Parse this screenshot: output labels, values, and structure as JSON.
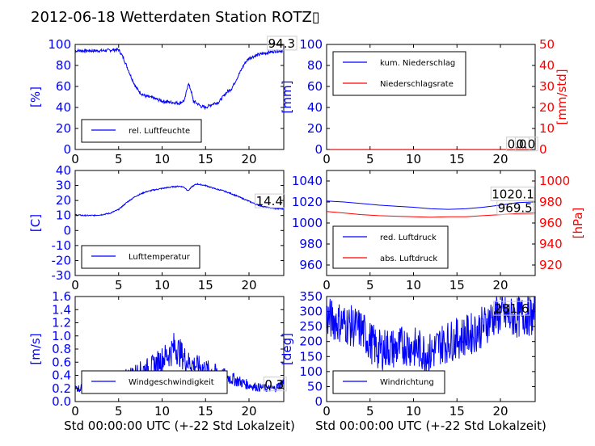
{
  "title": "2012-06-18 Wetterdaten Station ROTZ▯",
  "colors": {
    "blue": "#0000ff",
    "red": "#ff0000",
    "black": "#000000"
  },
  "chart_data": [
    {
      "id": "humidity",
      "type": "line",
      "xlim": [
        0,
        24
      ],
      "ylim": [
        0,
        100
      ],
      "xticks": [
        0,
        5,
        10,
        15,
        20
      ],
      "yticks": [
        0,
        20,
        40,
        60,
        80,
        100
      ],
      "ylabel": "[%]",
      "legend": [
        "rel. Luftfeuchte"
      ],
      "legend_position": "lower-left",
      "series": [
        {
          "name": "rel. Luftfeuchte",
          "color": "#0000ff",
          "x": [
            0,
            1,
            2,
            3,
            4,
            4.6,
            5,
            5.5,
            6,
            6.5,
            7,
            7.5,
            8,
            9,
            10,
            11,
            12,
            12.6,
            13,
            13.3,
            13.6,
            14,
            14.5,
            15,
            15.5,
            16,
            16.5,
            17,
            17.5,
            18,
            18.5,
            19,
            19.5,
            20,
            21,
            22,
            23,
            24
          ],
          "y": [
            94,
            94,
            94,
            94,
            94.5,
            95,
            95,
            88,
            78,
            68,
            59,
            54,
            51,
            49,
            46,
            45,
            44,
            47,
            63,
            57,
            46,
            44,
            41,
            40,
            42,
            44,
            45,
            50,
            55,
            58,
            66,
            74,
            82,
            87,
            90,
            92,
            93.5,
            94.3
          ],
          "noise": 1.5
        }
      ],
      "annotations": [
        {
          "text": "94.3",
          "x": 22.2,
          "y": 97
        }
      ]
    },
    {
      "id": "precip",
      "type": "line",
      "xlim": [
        0,
        24
      ],
      "ylim": [
        0,
        100
      ],
      "xticks": [
        0,
        5,
        10,
        15,
        20
      ],
      "yticks": [
        0,
        20,
        40,
        60,
        80,
        100
      ],
      "ylabel": "[mm]",
      "ylim2": [
        0,
        50
      ],
      "yticks2": [
        0,
        10,
        20,
        30,
        40,
        50
      ],
      "ylabel2": "[mm/std]",
      "legend": [
        "kum. Niederschlag",
        "Niederschlagsrate"
      ],
      "legend_position": "upper-left",
      "series": [
        {
          "name": "kum. Niederschlag",
          "color": "#0000ff",
          "x": [
            0,
            24
          ],
          "y": [
            0,
            0
          ],
          "noise": 0
        },
        {
          "name": "Niederschlagsrate",
          "color": "#ff0000",
          "x": [
            0,
            24
          ],
          "y": [
            0,
            0
          ],
          "noise": 0
        }
      ],
      "annotations": [
        {
          "text": "0.0",
          "x": 20.8,
          "y": 1
        },
        {
          "text": "0.0",
          "x": 21.8,
          "y": 1
        }
      ]
    },
    {
      "id": "temperature",
      "type": "line",
      "xlim": [
        0,
        24
      ],
      "ylim": [
        -30,
        40
      ],
      "xticks": [
        0,
        5,
        10,
        15,
        20
      ],
      "yticks": [
        -30,
        -20,
        -10,
        0,
        10,
        20,
        30,
        40
      ],
      "ylabel": "[C]",
      "legend": [
        "Lufttemperatur"
      ],
      "legend_position": "lower-left",
      "series": [
        {
          "name": "Lufttemperatur",
          "color": "#0000ff",
          "x": [
            0,
            1,
            2,
            3,
            4,
            5,
            6,
            7,
            8,
            9,
            10,
            11,
            12,
            12.5,
            13,
            13.5,
            14,
            15,
            16,
            17,
            18,
            19,
            20,
            21,
            22,
            23,
            24
          ],
          "y": [
            10.5,
            10,
            10,
            10.5,
            11.5,
            14,
            19,
            23,
            25.5,
            27,
            28,
            29,
            29.5,
            29,
            26.5,
            29.5,
            31,
            30,
            28,
            26.5,
            24.5,
            22,
            19.5,
            17,
            15.5,
            14.6,
            14.4
          ],
          "noise": 0.4
        }
      ],
      "annotations": [
        {
          "text": "14.4",
          "x": 20.8,
          "y": 16.8
        }
      ]
    },
    {
      "id": "pressure",
      "type": "line",
      "xlim": [
        0,
        24
      ],
      "ylim": [
        950,
        1050
      ],
      "xticks": [
        0,
        5,
        10,
        15,
        20
      ],
      "yticks": [
        960,
        980,
        1000,
        1020,
        1040
      ],
      "ylim2": [
        910,
        1010
      ],
      "yticks2": [
        920,
        940,
        960,
        980,
        1000
      ],
      "ylabel2": "[hPa]",
      "legend": [
        "red. Luftdruck",
        "abs. Luftdruck"
      ],
      "legend_position": "lower-left",
      "series": [
        {
          "name": "red. Luftdruck",
          "color": "#0000ff",
          "x": [
            0,
            2,
            4,
            6,
            8,
            10,
            12,
            14,
            16,
            18,
            20,
            22,
            24
          ],
          "y": [
            1021,
            1020,
            1018.5,
            1017,
            1016,
            1015,
            1013.5,
            1013,
            1013.5,
            1015,
            1017,
            1019.5,
            1020.1
          ],
          "noise": 0
        },
        {
          "name": "abs. Luftdruck",
          "color": "#ff0000",
          "axis": 2,
          "x": [
            0,
            2,
            4,
            6,
            8,
            10,
            12,
            14,
            16,
            18,
            20,
            22,
            24
          ],
          "y": [
            971,
            969.5,
            968,
            967,
            966.5,
            966,
            965.5,
            966,
            966,
            967,
            968,
            969,
            969.5
          ],
          "noise": 0
        }
      ],
      "annotations": [
        {
          "text": "1020.1",
          "x": 19,
          "y": 1023.5
        },
        {
          "text": "969.5",
          "x": 19.7,
          "y": 1010.5
        }
      ]
    },
    {
      "id": "wind_speed",
      "type": "line",
      "xlim": [
        0,
        24
      ],
      "ylim": [
        0,
        1.6
      ],
      "xticks": [
        0,
        5,
        10,
        15,
        20
      ],
      "yticks": [
        0,
        0.2,
        0.4,
        0.6,
        0.8,
        1.0,
        1.2,
        1.4,
        1.6
      ],
      "ylabel": "[m/s]",
      "xlabel": "Std 00:00:00 UTC (+-22 Std Lokalzeit)",
      "legend": [
        "Windgeschwindigkeit"
      ],
      "legend_position": "lower-left",
      "series": [
        {
          "name": "Windgeschwindigkeit",
          "color": "#0000ff",
          "x": [
            0,
            2,
            4,
            5,
            6,
            7,
            8,
            9,
            10,
            11,
            11.5,
            12,
            13,
            14,
            15,
            16,
            17,
            18,
            19,
            20,
            21,
            22,
            23,
            24
          ],
          "y": [
            0.2,
            0.22,
            0.25,
            0.3,
            0.4,
            0.45,
            0.5,
            0.55,
            0.65,
            0.75,
            0.85,
            0.75,
            0.6,
            0.55,
            0.5,
            0.45,
            0.4,
            0.35,
            0.3,
            0.25,
            0.22,
            0.2,
            0.2,
            0.3
          ],
          "noise": 0.3
        }
      ],
      "annotations": [
        {
          "text": "0.3",
          "x": 21.8,
          "y": 0.2
        }
      ]
    },
    {
      "id": "wind_direction",
      "type": "line",
      "xlim": [
        0,
        24
      ],
      "ylim": [
        0,
        350
      ],
      "xticks": [
        0,
        5,
        10,
        15,
        20
      ],
      "yticks": [
        0,
        50,
        100,
        150,
        200,
        250,
        300,
        350
      ],
      "ylabel": "[deg]",
      "xlabel": "Std 00:00:00 UTC (+-22 Std Lokalzeit)",
      "legend": [
        "Windrichtung"
      ],
      "legend_position": "lower-left",
      "series": [
        {
          "name": "Windrichtung",
          "color": "#0000ff",
          "x": [
            0,
            2,
            4,
            5,
            6,
            7,
            8,
            9,
            10,
            11,
            12,
            13,
            14,
            15,
            16,
            17,
            18,
            19,
            20,
            21,
            22,
            23,
            24
          ],
          "y": [
            280,
            260,
            240,
            200,
            170,
            180,
            175,
            190,
            180,
            170,
            160,
            190,
            200,
            210,
            220,
            230,
            250,
            280,
            290,
            280,
            280,
            290,
            280
          ],
          "noise": 70
        }
      ],
      "annotations": [
        {
          "text": "281.6",
          "x": 19.3,
          "y": 296
        }
      ]
    }
  ]
}
